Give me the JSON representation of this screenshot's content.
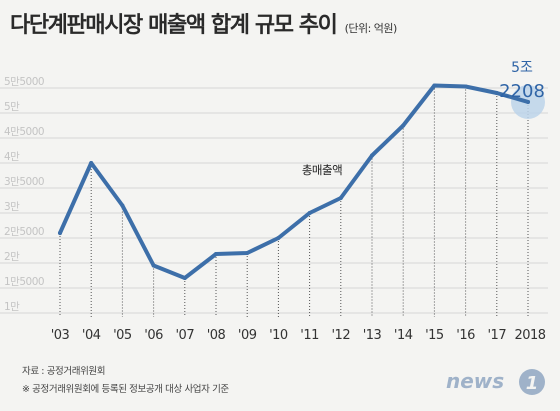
{
  "header": {
    "title": "다단계판매시장 매출액 합계 규모 추이",
    "unit": "(단위: 억원)"
  },
  "chart_data": {
    "type": "line",
    "title": "다단계판매시장 매출액 합계 규모 추이",
    "unit": "(단위: 억원)",
    "categories": [
      "'03",
      "'04",
      "'05",
      "'06",
      "'07",
      "'08",
      "'09",
      "'10",
      "'11",
      "'12",
      "'13",
      "'14",
      "'15",
      "'16",
      "'17",
      "2018"
    ],
    "series": [
      {
        "name": "총매출액",
        "values": [
          26000,
          40000,
          31500,
          19500,
          17000,
          21800,
          22000,
          25000,
          30000,
          33000,
          41500,
          47500,
          55500,
          55300,
          54000,
          52208
        ]
      }
    ],
    "yticks": [
      "1만",
      "1만5000",
      "2만",
      "2만5000",
      "3만",
      "3만5000",
      "4만",
      "4만5000",
      "5만",
      "5만5000"
    ],
    "ylim": [
      10000,
      55000
    ],
    "grid": false,
    "series_label": "총매출액",
    "highlight": {
      "category": "2018",
      "label_line1": "5조",
      "label_line2": "2208"
    },
    "colors": {
      "line": "#3d6fa9",
      "highlight_circle": "#bcd3ea",
      "highlight_text": "#2f64a6",
      "gridline": "#d6d6d6",
      "dotted": "#555555"
    }
  },
  "footer": {
    "source": "자료 : 공정거래위원회",
    "note": "※ 공정거래위원회에 등록된 정보공개 대상 사업자 기준"
  },
  "logo": {
    "text": "news",
    "mark": "1"
  }
}
